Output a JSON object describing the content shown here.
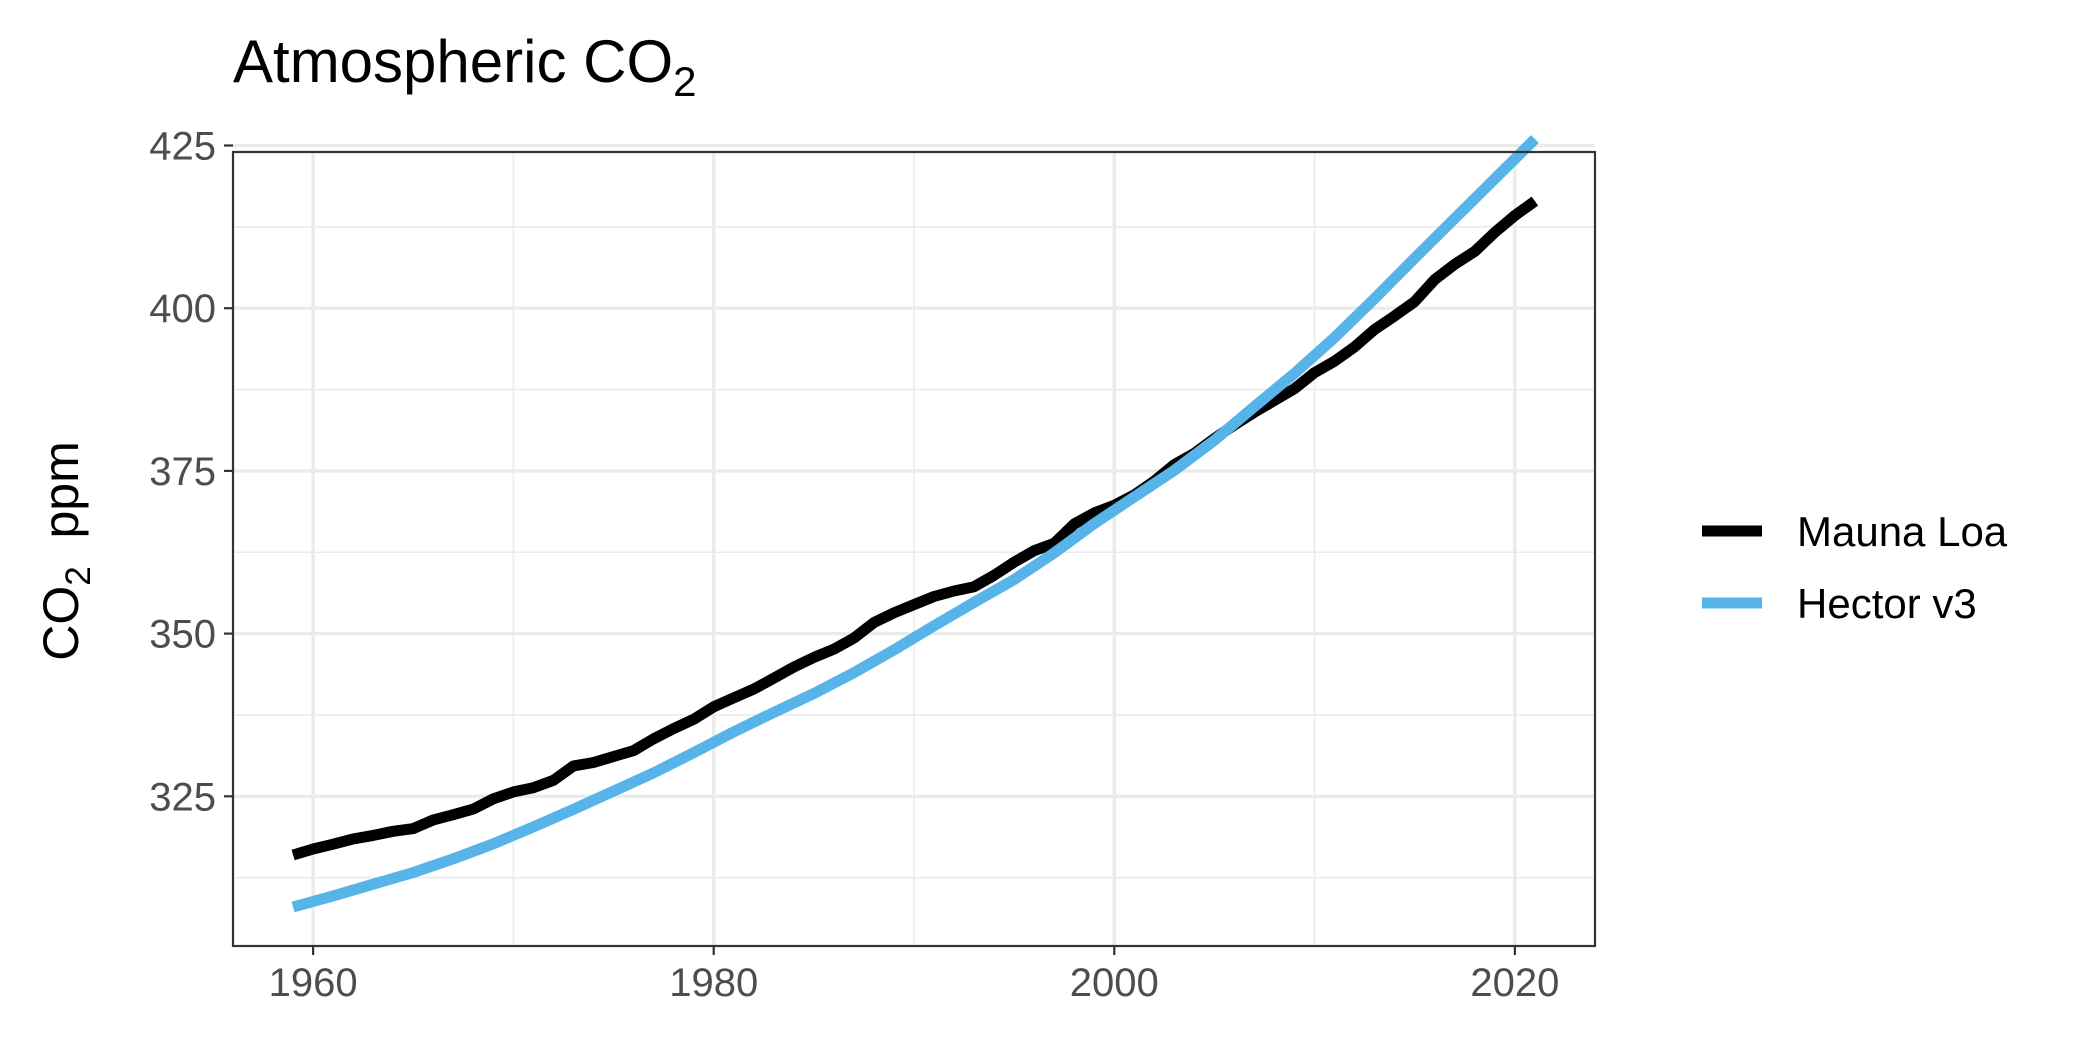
{
  "chart_data": {
    "type": "line",
    "title": {
      "main": "Atmospheric CO",
      "sub": "2"
    },
    "ylabel": {
      "main": "CO",
      "sub": "2",
      "rest": "  ppm"
    },
    "xlabel": "",
    "xlim": [
      1956,
      2024
    ],
    "ylim": [
      302,
      424
    ],
    "xticks": [
      1960,
      1980,
      2000,
      2020
    ],
    "yticks": [
      325,
      350,
      375,
      400,
      425
    ],
    "grid": true,
    "legend_position": "right",
    "series": [
      {
        "name": "Mauna Loa",
        "color": "#000000",
        "x": [
          1959,
          1960,
          1961,
          1962,
          1963,
          1964,
          1965,
          1966,
          1967,
          1968,
          1969,
          1970,
          1971,
          1972,
          1973,
          1974,
          1975,
          1976,
          1977,
          1978,
          1979,
          1980,
          1981,
          1982,
          1983,
          1984,
          1985,
          1986,
          1987,
          1988,
          1989,
          1990,
          1991,
          1992,
          1993,
          1994,
          1995,
          1996,
          1997,
          1998,
          1999,
          2000,
          2001,
          2002,
          2003,
          2004,
          2005,
          2006,
          2007,
          2008,
          2009,
          2010,
          2011,
          2012,
          2013,
          2014,
          2015,
          2016,
          2017,
          2018,
          2019,
          2020,
          2021
        ],
        "values": [
          315.98,
          316.91,
          317.64,
          318.45,
          318.99,
          319.62,
          320.04,
          321.37,
          322.18,
          323.05,
          324.62,
          325.68,
          326.32,
          327.46,
          329.68,
          330.19,
          331.12,
          332.03,
          333.84,
          335.41,
          336.84,
          338.76,
          340.12,
          341.48,
          343.15,
          344.85,
          346.35,
          347.61,
          349.31,
          351.69,
          353.2,
          354.45,
          355.7,
          356.54,
          357.21,
          358.96,
          360.97,
          362.74,
          363.88,
          366.84,
          368.54,
          369.71,
          371.32,
          373.45,
          375.98,
          377.7,
          379.98,
          382.09,
          384.02,
          385.83,
          387.64,
          390.1,
          391.85,
          394.06,
          396.74,
          398.81,
          401.01,
          404.41,
          406.76,
          408.72,
          411.66,
          414.24,
          416.45
        ]
      },
      {
        "name": "Hector v3",
        "color": "#56B4E9",
        "x": [
          1959,
          1961,
          1963,
          1965,
          1967,
          1969,
          1971,
          1973,
          1975,
          1977,
          1979,
          1981,
          1983,
          1985,
          1987,
          1989,
          1991,
          1993,
          1995,
          1997,
          1999,
          2001,
          2003,
          2005,
          2007,
          2009,
          2011,
          2013,
          2015,
          2017,
          2019,
          2021
        ],
        "values": [
          308.0,
          309.7,
          311.5,
          313.3,
          315.4,
          317.7,
          320.3,
          323.0,
          325.8,
          328.6,
          331.7,
          334.9,
          337.9,
          340.8,
          344.0,
          347.5,
          351.2,
          354.8,
          358.3,
          362.4,
          366.9,
          371.0,
          375.1,
          379.7,
          384.9,
          390.0,
          395.5,
          401.5,
          407.7,
          413.8,
          419.9,
          426.0
        ]
      }
    ]
  }
}
